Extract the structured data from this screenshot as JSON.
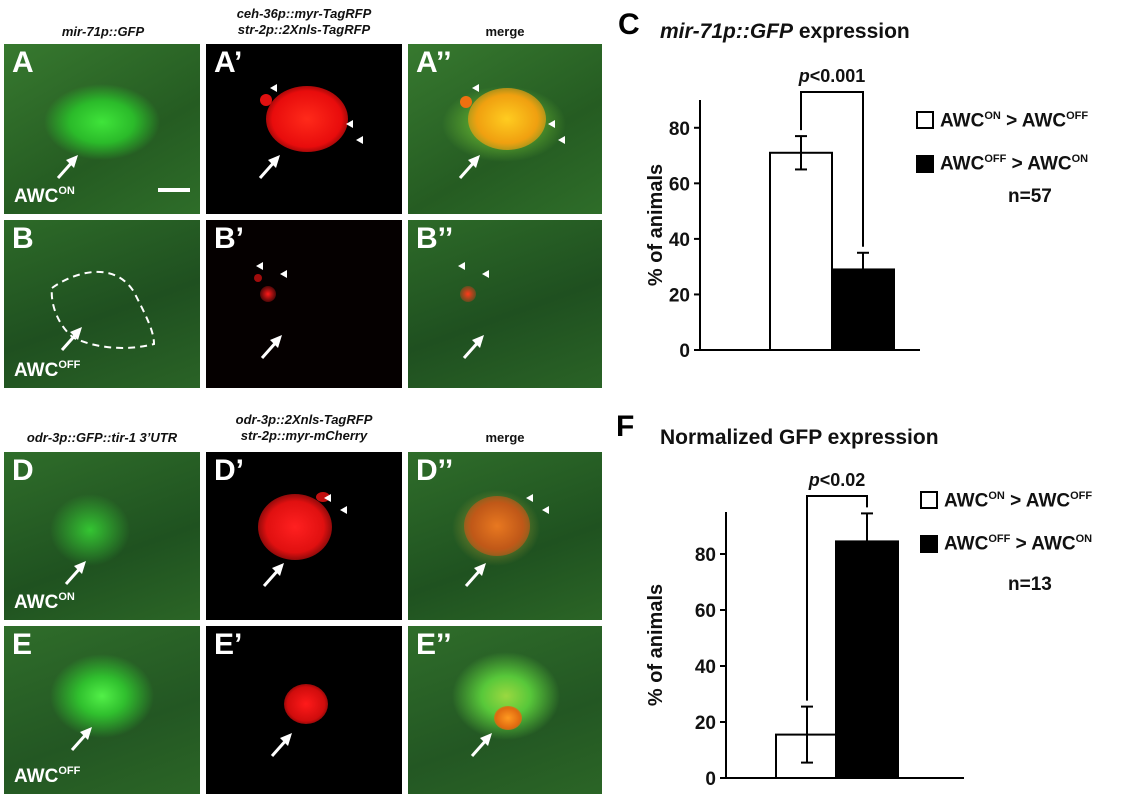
{
  "headers": {
    "col1_top": "mir-71p::GFP",
    "col2_top_line1": "ceh-36p::myr-TagRFP",
    "col2_top_line2": "str-2p::2Xnls-TagRFP",
    "col3_top": "merge",
    "col1_bottom": "odr-3p::GFP::tir-1 3’UTR",
    "col2_bottom_line1": "odr-3p::2Xnls-TagRFP",
    "col2_bottom_line2": "str-2p::myr-mCherry",
    "col3_bottom": "merge"
  },
  "panels": {
    "A": "A",
    "A1": "A’",
    "A2": "A’’",
    "B": "B",
    "B1": "B’",
    "B2": "B’’",
    "D": "D",
    "D1": "D’",
    "D2": "D’’",
    "E": "E",
    "E1": "E’",
    "E2": "E’’"
  },
  "cell_labels": {
    "awc": "AWC",
    "on": "ON",
    "off": "OFF"
  },
  "colors": {
    "gfp_bg": "#2f6e2a",
    "gfp_cell": "#3ee83a",
    "rfp_cell": "#ff1010",
    "black": "#000000",
    "bar_on": "#ffffff",
    "bar_off": "#000000"
  },
  "chart_data": [
    {
      "panel_letter": "C",
      "type": "bar",
      "title_italic": "mir-71p::GFP",
      "title_rest": " expression",
      "ylabel": "% of animals",
      "ylim": [
        0,
        90
      ],
      "yticks": [
        0,
        20,
        40,
        60,
        80
      ],
      "series": [
        {
          "name": "AWC ON > AWC OFF",
          "value": 71,
          "error": 6,
          "fill": "#ffffff"
        },
        {
          "name": "AWC OFF > AWC ON",
          "value": 29,
          "error": 6,
          "fill": "#000000"
        }
      ],
      "significance": "p<0.001",
      "sig_p": "p",
      "sig_rest": "<0.001",
      "n_label": "n=57",
      "legend": [
        {
          "a": "AWC",
          "asup": "ON",
          "sep": " > ",
          "b": "AWC",
          "bsup": "OFF"
        },
        {
          "a": "AWC",
          "asup": "OFF",
          "sep": " > ",
          "b": "AWC",
          "bsup": "ON"
        }
      ]
    },
    {
      "panel_letter": "F",
      "type": "bar",
      "title": "Normalized GFP expression",
      "ylabel": "% of animals",
      "ylim": [
        0,
        95
      ],
      "yticks": [
        0,
        20,
        40,
        60,
        80
      ],
      "series": [
        {
          "name": "AWC ON > AWC OFF",
          "value": 15.5,
          "error": 10,
          "fill": "#ffffff"
        },
        {
          "name": "AWC OFF > AWC ON",
          "value": 84.5,
          "error": 10,
          "fill": "#000000"
        }
      ],
      "significance": "p<0.02",
      "sig_p": "p",
      "sig_rest": "<0.02",
      "n_label": "n=13",
      "legend": [
        {
          "a": "AWC",
          "asup": "ON",
          "sep": " > ",
          "b": "AWC",
          "bsup": "OFF"
        },
        {
          "a": "AWC",
          "asup": "OFF",
          "sep": " > ",
          "b": "AWC",
          "bsup": "ON"
        }
      ]
    }
  ]
}
